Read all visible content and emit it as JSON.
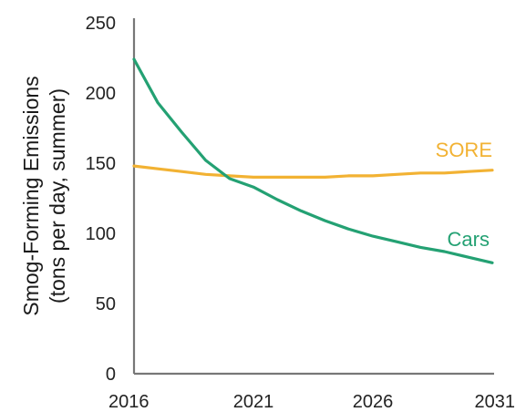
{
  "chart_data": {
    "type": "line",
    "title": "",
    "xlabel": "",
    "ylabel_lines": [
      "Smog-Forming Emissions",
      "(tons per day, summer)"
    ],
    "xlim": [
      2016,
      2031
    ],
    "ylim": [
      0,
      250
    ],
    "x_ticks": [
      2016,
      2021,
      2026,
      2031
    ],
    "y_ticks": [
      0,
      50,
      100,
      150,
      200,
      250
    ],
    "grid": false,
    "legend": "inline labels",
    "series": [
      {
        "name": "SORE",
        "color": "#f2b233",
        "x": [
          2016,
          2017,
          2018,
          2019,
          2020,
          2021,
          2022,
          2023,
          2024,
          2025,
          2026,
          2027,
          2028,
          2029,
          2030,
          2031
        ],
        "values": [
          148,
          146,
          144,
          142,
          141,
          140,
          140,
          140,
          140,
          141,
          141,
          142,
          143,
          143,
          144,
          145
        ]
      },
      {
        "name": "Cars",
        "color": "#24a173",
        "x": [
          2016,
          2017,
          2018,
          2019,
          2020,
          2021,
          2022,
          2023,
          2024,
          2025,
          2026,
          2027,
          2028,
          2029,
          2030,
          2031
        ],
        "values": [
          224,
          193,
          172,
          152,
          139,
          133,
          124,
          116,
          109,
          103,
          98,
          94,
          90,
          87,
          83,
          79
        ]
      }
    ]
  }
}
